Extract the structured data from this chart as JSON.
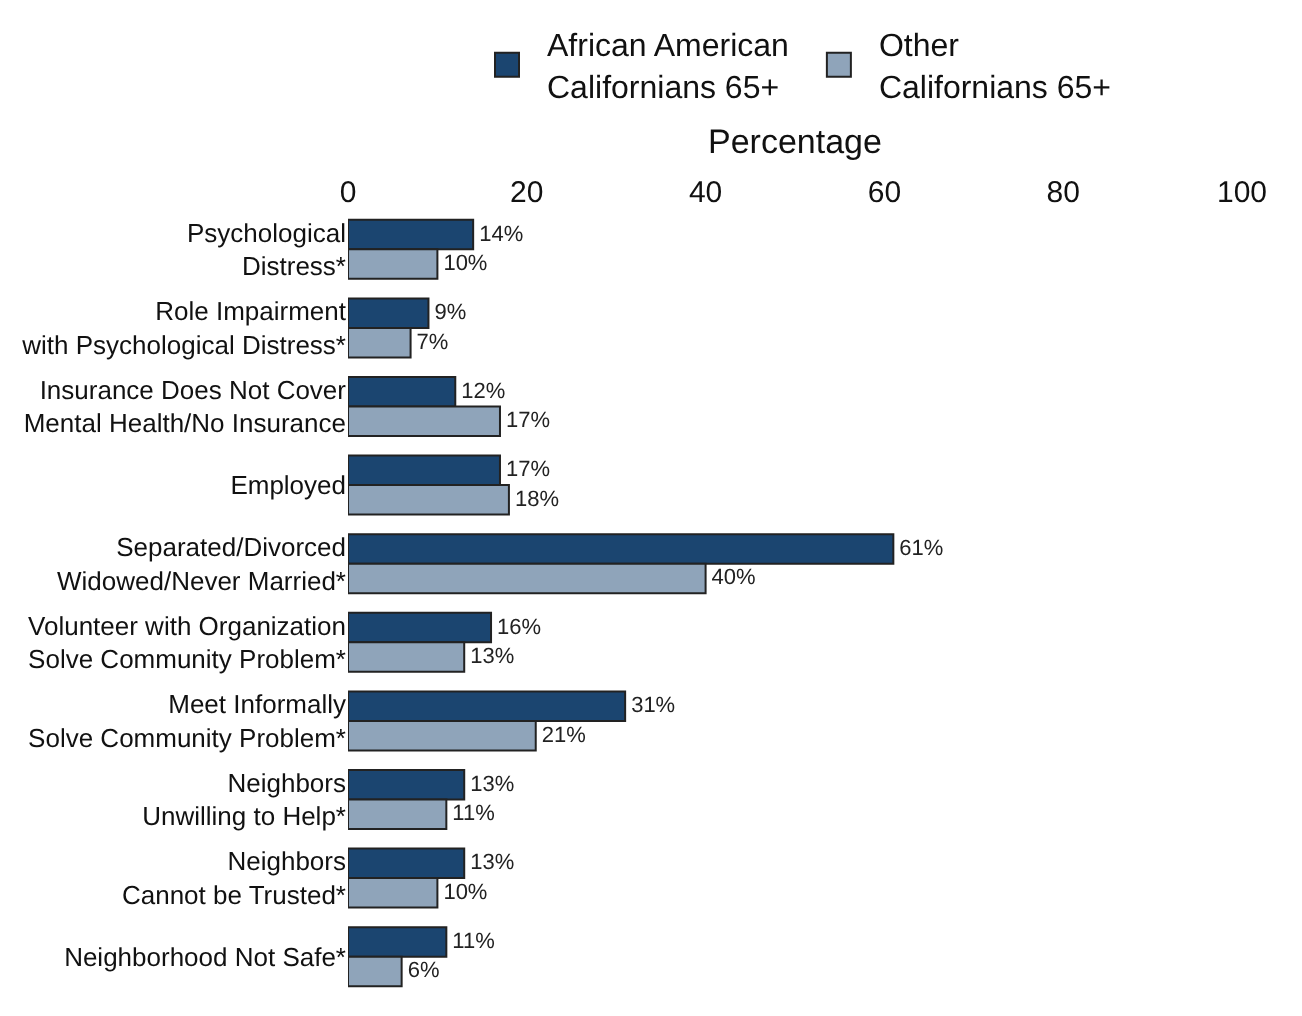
{
  "chart_data": {
    "type": "bar",
    "orientation": "horizontal",
    "xlabel": "Percentage",
    "categories": [
      "Psychological\nDistress*",
      "Role Impairment\nwith Psychological Distress*",
      "Insurance Does Not Cover\nMental Health/No Insurance",
      "Employed",
      "Separated/Divorced\nWidowed/Never Married*",
      "Volunteer with Organization\nSolve Community Problem*",
      "Meet Informally\nSolve Community Problem*",
      "Neighbors\nUnwilling to Help*",
      "Neighbors\nCannot be Trusted*",
      "Neighborhood Not Safe*"
    ],
    "series": [
      {
        "name": "African American\nCalifornians 65+",
        "color": "#1b4570",
        "values": [
          14,
          9,
          12,
          17,
          61,
          16,
          31,
          13,
          13,
          11
        ],
        "value_labels": [
          "14%",
          "9%",
          "12%",
          "17%",
          "61%",
          "16%",
          "31%",
          "13%",
          "13%",
          "11%"
        ]
      },
      {
        "name": "Other\nCalifornians 65+",
        "color": "#8fa4ba",
        "values": [
          10,
          7,
          17,
          18,
          40,
          13,
          21,
          11,
          10,
          6
        ],
        "value_labels": [
          "10%",
          "7%",
          "17%",
          "18%",
          "40%",
          "13%",
          "21%",
          "11%",
          "10%",
          "6%"
        ]
      }
    ],
    "xlim": [
      0,
      100
    ],
    "xticks": [
      0,
      20,
      40,
      60,
      80,
      100
    ],
    "legend": "top"
  }
}
